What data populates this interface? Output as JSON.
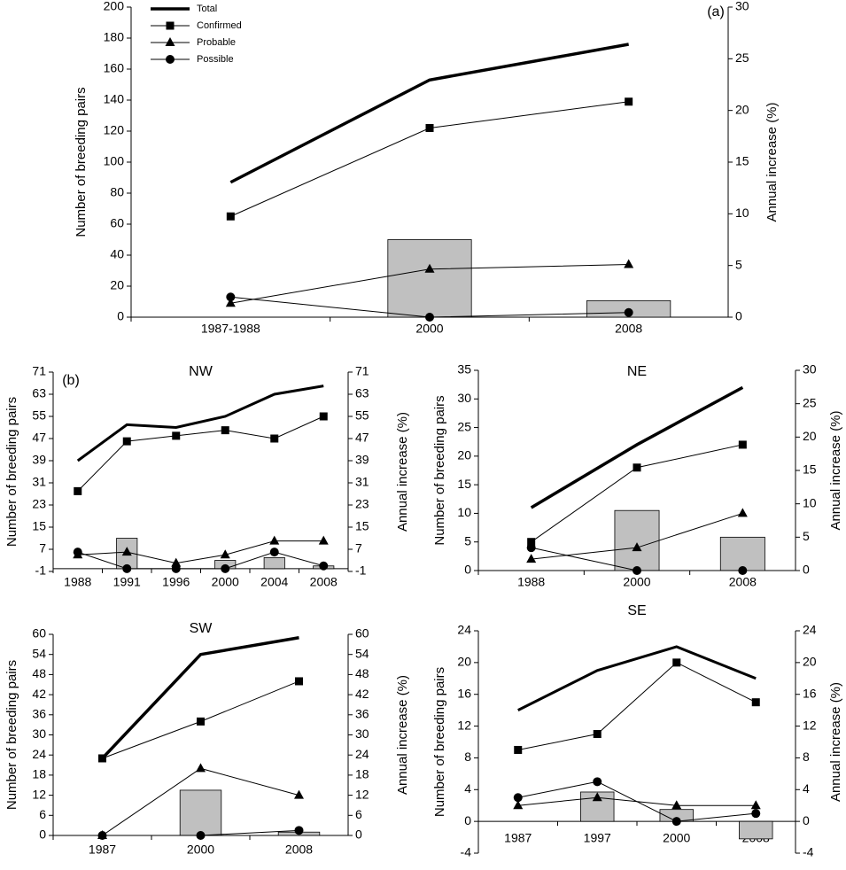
{
  "chart_data": [
    {
      "type": "line",
      "annotation": "(a)",
      "ylabel": "Number of breeding pairs",
      "y2label": "Annual increase (%)",
      "categories": [
        "1987-1988",
        "2000",
        "2008"
      ],
      "ylim": [
        0,
        200
      ],
      "yticks": [
        0,
        20,
        40,
        60,
        80,
        100,
        120,
        140,
        160,
        180,
        200
      ],
      "y2lim": [
        0,
        30
      ],
      "y2ticks": [
        0,
        5,
        10,
        15,
        20,
        25,
        30
      ],
      "legend": "upper left",
      "series": [
        {
          "name": "Total",
          "color": "#000000",
          "marker": "none",
          "line_width": 3.5,
          "values": [
            87,
            153,
            176
          ]
        },
        {
          "name": "Confirmed",
          "color": "#000000",
          "marker": "square",
          "line_width": 1,
          "values": [
            65,
            122,
            139
          ]
        },
        {
          "name": "Probable",
          "color": "#000000",
          "marker": "triangle",
          "line_width": 1,
          "values": [
            9,
            31,
            34
          ]
        },
        {
          "name": "Possible",
          "color": "#000000",
          "marker": "circle",
          "line_width": 1,
          "values": [
            13,
            0,
            3
          ]
        },
        {
          "type": "bar",
          "axis": "y2",
          "color": "#c0c0c0",
          "values": [
            null,
            7.5,
            1.6
          ]
        }
      ]
    },
    {
      "type": "line",
      "annotation": "(b)",
      "title": "NW",
      "ylabel": "Number of breeding pairs",
      "y2label": "Annual increase (%)",
      "categories": [
        "1988",
        "1991",
        "1996",
        "2000",
        "2004",
        "2008"
      ],
      "ylim": [
        -1,
        71
      ],
      "yticks": [
        -1,
        7,
        15,
        23,
        31,
        39,
        47,
        55,
        63,
        71
      ],
      "y2lim": [
        -1,
        71
      ],
      "y2ticks": [
        -1,
        7,
        15,
        23,
        31,
        39,
        47,
        55,
        63,
        71
      ],
      "series": [
        {
          "color": "#000000",
          "marker": "none",
          "line_width": 3,
          "values": [
            39,
            52,
            51,
            55,
            63,
            66
          ]
        },
        {
          "color": "#000000",
          "marker": "square",
          "line_width": 1,
          "values": [
            28,
            46,
            48,
            50,
            47,
            55
          ]
        },
        {
          "color": "#000000",
          "marker": "triangle",
          "line_width": 1,
          "values": [
            5,
            6,
            2,
            5,
            10,
            10
          ]
        },
        {
          "color": "#000000",
          "marker": "circle",
          "line_width": 1,
          "values": [
            6,
            0,
            0,
            0,
            6,
            1
          ]
        },
        {
          "type": "bar",
          "axis": "y2",
          "color": "#c0c0c0",
          "values": [
            null,
            11,
            null,
            3,
            4,
            1
          ]
        }
      ]
    },
    {
      "type": "line",
      "title": "NE",
      "ylabel": "Number of breeding pairs",
      "y2label": "Annual increase (%)",
      "categories": [
        "1988",
        "2000",
        "2008"
      ],
      "ylim": [
        0,
        35
      ],
      "yticks": [
        0,
        5,
        10,
        15,
        20,
        25,
        30,
        35
      ],
      "y2lim": [
        0,
        30
      ],
      "y2ticks": [
        0,
        5,
        10,
        15,
        20,
        25,
        30
      ],
      "series": [
        {
          "color": "#000000",
          "marker": "none",
          "line_width": 3.5,
          "values": [
            11,
            22,
            32
          ]
        },
        {
          "color": "#000000",
          "marker": "square",
          "line_width": 1,
          "values": [
            5,
            18,
            22
          ]
        },
        {
          "color": "#000000",
          "marker": "triangle",
          "line_width": 1,
          "values": [
            2,
            4,
            10
          ]
        },
        {
          "color": "#000000",
          "marker": "circle",
          "line_width": 1,
          "values": [
            4,
            0,
            0
          ]
        },
        {
          "type": "bar",
          "axis": "y2",
          "color": "#c0c0c0",
          "values": [
            null,
            9,
            5
          ]
        }
      ]
    },
    {
      "type": "line",
      "title": "SW",
      "ylabel": "Number of breeding pairs",
      "y2label": "Annual increase (%)",
      "categories": [
        "1987",
        "2000",
        "2008"
      ],
      "ylim": [
        0,
        60
      ],
      "yticks": [
        0,
        6,
        12,
        18,
        24,
        30,
        36,
        42,
        48,
        54,
        60
      ],
      "y2lim": [
        0,
        60
      ],
      "y2ticks": [
        0,
        6,
        12,
        18,
        24,
        30,
        36,
        42,
        48,
        54,
        60
      ],
      "series": [
        {
          "color": "#000000",
          "marker": "none",
          "line_width": 3.5,
          "values": [
            23,
            54,
            59
          ]
        },
        {
          "color": "#000000",
          "marker": "square",
          "line_width": 1,
          "values": [
            23,
            34,
            46
          ]
        },
        {
          "color": "#000000",
          "marker": "triangle",
          "line_width": 1,
          "values": [
            0,
            20,
            12
          ]
        },
        {
          "color": "#000000",
          "marker": "circle",
          "line_width": 1,
          "values": [
            0,
            0,
            1.5
          ]
        },
        {
          "type": "bar",
          "axis": "y2",
          "color": "#c0c0c0",
          "values": [
            null,
            13.5,
            1
          ]
        }
      ]
    },
    {
      "type": "line",
      "title": "SE",
      "ylabel": "Number of breeding pairs",
      "y2label": "Annual increase (%)",
      "categories": [
        "1987",
        "1997",
        "2000",
        "2008"
      ],
      "ylim": [
        -4,
        24
      ],
      "yticks": [
        -4,
        0,
        4,
        8,
        12,
        16,
        20,
        24
      ],
      "y2lim": [
        -4,
        24
      ],
      "y2ticks": [
        -4,
        0,
        4,
        8,
        12,
        16,
        20,
        24
      ],
      "series": [
        {
          "color": "#000000",
          "marker": "none",
          "line_width": 3,
          "values": [
            14,
            19,
            22,
            18
          ]
        },
        {
          "color": "#000000",
          "marker": "square",
          "line_width": 1,
          "values": [
            9,
            11,
            20,
            15
          ]
        },
        {
          "color": "#000000",
          "marker": "triangle",
          "line_width": 1,
          "values": [
            2,
            3,
            2,
            2
          ]
        },
        {
          "color": "#000000",
          "marker": "circle",
          "line_width": 1,
          "values": [
            3,
            5,
            0,
            1
          ]
        },
        {
          "type": "bar",
          "axis": "y2",
          "color": "#c0c0c0",
          "values": [
            null,
            3.7,
            1.5,
            -2.2
          ]
        }
      ]
    }
  ]
}
